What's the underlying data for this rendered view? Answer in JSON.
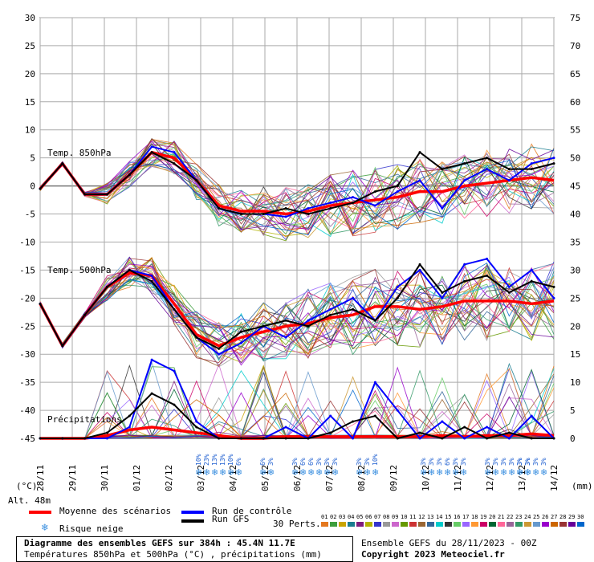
{
  "chart_data": {
    "type": "line",
    "title": "Diagramme des ensembles GEFS sur 384h : 45.4N 11.7E",
    "subtitle": "Températures 850hPa et 500hPa (°C) , précipitations (mm)",
    "left_axis": {
      "label": "(°C)",
      "ticks": [
        30,
        25,
        20,
        15,
        10,
        5,
        0,
        -5,
        -10,
        -15,
        -20,
        -25,
        -30,
        -35,
        -40,
        -45
      ],
      "ylim": [
        -45,
        30
      ]
    },
    "right_axis": {
      "label": "(mm)",
      "ticks": [
        75,
        70,
        65,
        60,
        55,
        50,
        45,
        40,
        35,
        30,
        25,
        20,
        15,
        10,
        5,
        0
      ],
      "ylim": [
        0,
        75
      ]
    },
    "x_labels": [
      "28/11",
      "29/11",
      "30/11",
      "01/12",
      "02/12",
      "03/12",
      "04/12",
      "05/12",
      "06/12",
      "07/12",
      "08/12",
      "09/12",
      "10/12",
      "11/12",
      "12/12",
      "13/12",
      "14/12"
    ],
    "panel_labels": [
      "Temp. 850hPa",
      "Temp. 500hPa",
      "Précipitations"
    ],
    "altitude": "Alt. 48m",
    "series": [
      {
        "name": "Moyenne des scénarios",
        "color": "#ff0000",
        "t850": [
          -0.5,
          4,
          -1.5,
          -1.5,
          2,
          6,
          5,
          1,
          -3.5,
          -4.5,
          -4.5,
          -5,
          -4.5,
          -3.5,
          -3,
          -2.5,
          -2,
          -1,
          -1,
          0,
          0.5,
          1,
          1.5,
          1
        ],
        "t500": [
          -21,
          -28.5,
          -23,
          -18,
          -15.5,
          -16,
          -21,
          -26.5,
          -28.5,
          -27,
          -26,
          -25,
          -24.5,
          -23.5,
          -23,
          -21.5,
          -21.5,
          -22,
          -21.5,
          -20.5,
          -20.5,
          -20.5,
          -21,
          -20.5
        ],
        "precip": [
          0,
          0,
          0,
          0.5,
          1.5,
          2,
          1.5,
          1,
          0.5,
          0,
          0,
          0.3,
          0.3,
          0.3,
          0.3,
          0.3,
          0.3,
          0.3,
          0.5,
          0.3,
          0.5,
          0.5,
          0.8,
          0.5
        ]
      },
      {
        "name": "Run de contrôle",
        "color": "#0000ff",
        "t850": [
          -0.5,
          4,
          -1.5,
          -1.5,
          2,
          7,
          6,
          1,
          -4,
          -5,
          -5,
          -5.5,
          -4,
          -3,
          -2,
          -3.5,
          -1,
          1,
          -4,
          1,
          3,
          1,
          4,
          5
        ],
        "t500": [
          -21,
          -28.5,
          -23,
          -18,
          -15,
          -16,
          -22,
          -27,
          -30,
          -28,
          -25,
          -27,
          -24,
          -22,
          -20,
          -24,
          -18,
          -15,
          -20,
          -14,
          -13,
          -18,
          -15,
          -20
        ],
        "precip": [
          0,
          0,
          0,
          0,
          2,
          14,
          12,
          3,
          0,
          0,
          0,
          2,
          0,
          4,
          0,
          10,
          5,
          0,
          3,
          0,
          2,
          0,
          4,
          0
        ]
      },
      {
        "name": "Run GFS",
        "color": "#000000",
        "t850": [
          -0.5,
          4,
          -1.5,
          -1.5,
          2,
          6,
          4,
          1,
          -4,
          -5,
          -5,
          -4,
          -5,
          -4,
          -3,
          -1,
          0,
          6,
          3,
          4,
          5,
          3,
          3,
          4
        ],
        "t500": [
          -21,
          -28.5,
          -23,
          -18,
          -15,
          -17,
          -22,
          -27,
          -29,
          -26,
          -25,
          -24,
          -25,
          -23,
          -22,
          -24,
          -20,
          -14,
          -19,
          -17,
          -16,
          -19,
          -17,
          -18
        ],
        "precip": [
          0,
          0,
          0,
          1,
          4,
          8,
          6,
          2,
          0,
          0,
          0,
          0,
          0,
          1,
          3,
          4,
          0,
          1,
          0,
          2,
          0,
          1,
          0,
          0
        ]
      }
    ],
    "snow_risk": [
      {
        "date": "03/12",
        "pcts": [
          "10%",
          "23%",
          "13%",
          "13%",
          "10%",
          "6%"
        ]
      },
      {
        "date": "05/12",
        "pcts": [
          "6%",
          "3%"
        ]
      },
      {
        "date": "06/12",
        "pcts": [
          "3%",
          "6%",
          "6%",
          "3%",
          "3%",
          "3%"
        ]
      },
      {
        "date": "08/12",
        "pcts": [
          "3%",
          "3%",
          "10%"
        ]
      },
      {
        "date": "10/12",
        "pcts": [
          "3%",
          "3%",
          "3%",
          "6%",
          "3%",
          "3%"
        ]
      },
      {
        "date": "12/12",
        "pcts": [
          "3%",
          "3%",
          "3%",
          "3%",
          "3%",
          "3%"
        ]
      },
      {
        "date": "13/12",
        "pcts": [
          "3%",
          "3%",
          "3%",
          "3%"
        ]
      }
    ]
  },
  "legend": {
    "mean_label": "Moyenne des scénarios",
    "control_label": "Run de contrôle",
    "gfs_label": "Run GFS",
    "snow_label": "Risque neige",
    "perts_label": "30 Perts."
  },
  "perturbations": {
    "numbers": [
      "01",
      "02",
      "03",
      "04",
      "05",
      "06",
      "07",
      "08",
      "09",
      "10",
      "11",
      "12",
      "13",
      "14",
      "15",
      "16",
      "17",
      "18",
      "19",
      "20",
      "21",
      "22",
      "23",
      "24",
      "25",
      "26",
      "27",
      "28",
      "29",
      "30"
    ],
    "colors": [
      "#e4781e",
      "#3c9e3c",
      "#c9a400",
      "#1a7d8f",
      "#7f1d7f",
      "#b3b300",
      "#3333cc",
      "#999999",
      "#cc66cc",
      "#669900",
      "#cc3333",
      "#996633",
      "#336699",
      "#00cccc",
      "#333333",
      "#66cc66",
      "#9966ff",
      "#ff9933",
      "#cc0066",
      "#006633",
      "#ff6699",
      "#996699",
      "#339966",
      "#cc9933",
      "#6699cc",
      "#9900cc",
      "#cc6600",
      "#993333",
      "#660099",
      "#0066cc"
    ]
  },
  "footer": {
    "title": "Diagramme des ensembles GEFS sur 384h : 45.4N 11.7E",
    "subtitle": "Températures 850hPa et 500hPa (°C) , précipitations (mm)",
    "ensemble": "Ensemble GEFS du 28/11/2023 - 00Z",
    "copyright": "Copyright 2023 Meteociel.fr"
  }
}
